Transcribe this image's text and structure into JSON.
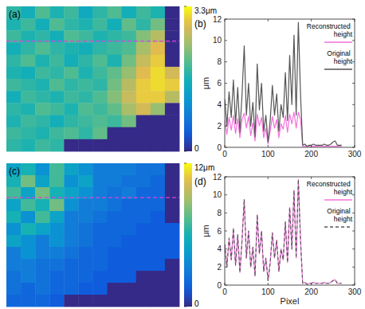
{
  "chart_data": [
    {
      "type": "heatmap",
      "title": "(a)",
      "tick_labels": false,
      "cells": [
        [
          1.8,
          1.6,
          2.0,
          1.7,
          1.9,
          1.5,
          1.8,
          2.0,
          1.6,
          1.9,
          1.7,
          0
        ],
        [
          1.7,
          1.9,
          1.6,
          2.0,
          1.8,
          1.7,
          1.9,
          1.6,
          2.1,
          1.8,
          2.2,
          0
        ],
        [
          1.9,
          1.7,
          1.8,
          1.6,
          2.0,
          1.9,
          1.7,
          1.8,
          1.9,
          2.3,
          2.6,
          0
        ],
        [
          1.6,
          1.8,
          2.0,
          1.8,
          1.7,
          1.6,
          1.8,
          1.9,
          2.0,
          2.5,
          2.9,
          0
        ],
        [
          1.8,
          2.0,
          1.7,
          1.9,
          1.6,
          1.8,
          2.0,
          1.7,
          2.2,
          2.7,
          3.0,
          0
        ],
        [
          1.7,
          1.6,
          1.9,
          1.8,
          2.0,
          1.7,
          1.9,
          2.1,
          2.4,
          2.9,
          3.1,
          2.8
        ],
        [
          1.9,
          1.8,
          1.7,
          2.0,
          1.8,
          1.9,
          1.8,
          2.2,
          2.6,
          3.0,
          3.1,
          3.0
        ],
        [
          1.6,
          1.9,
          1.8,
          1.7,
          1.9,
          1.8,
          2.0,
          2.3,
          2.7,
          3.0,
          3.0,
          2.6
        ],
        [
          1.8,
          1.7,
          2.0,
          1.9,
          1.7,
          2.0,
          1.9,
          2.1,
          2.5,
          2.8,
          2.4,
          0
        ],
        [
          1.7,
          1.9,
          1.8,
          1.6,
          1.8,
          1.9,
          2.0,
          1.9,
          2.2,
          0,
          0,
          0
        ],
        [
          1.9,
          1.8,
          1.7,
          1.9,
          2.0,
          1.8,
          2.1,
          0,
          0,
          0,
          0,
          0
        ],
        [
          1.8,
          1.7,
          1.9,
          1.8,
          0,
          0,
          0,
          0,
          0,
          0,
          0,
          0
        ]
      ],
      "colorbar_range": [
        0,
        3.3
      ],
      "colorbar_ticks": [
        {
          "value": 3.3,
          "label": "3.3μm"
        },
        0
      ]
    },
    {
      "type": "line",
      "title": "(b)",
      "y_label": "μm",
      "x": [
        0,
        5,
        10,
        15,
        20,
        25,
        30,
        35,
        40,
        45,
        50,
        55,
        60,
        65,
        70,
        75,
        80,
        85,
        90,
        95,
        100,
        105,
        110,
        115,
        120,
        125,
        130,
        135,
        140,
        145,
        150,
        155,
        160,
        165,
        170,
        175,
        180,
        185,
        190,
        195,
        200,
        205,
        210,
        215,
        220,
        225,
        230,
        235,
        240,
        245,
        250,
        255,
        260,
        265,
        270
      ],
      "series": [
        {
          "name": "Reconstructed height",
          "color": "#f472dc",
          "line_style": "solid",
          "values": [
            2.5,
            1.2,
            2.8,
            1.6,
            3.0,
            1.3,
            2.7,
            0.9,
            2.6,
            3.2,
            1.8,
            2.9,
            1.1,
            2.3,
            0.6,
            3.1,
            2.0,
            2.8,
            0.9,
            1.8,
            0.3,
            1.5,
            2.9,
            1.8,
            2.6,
            0.9,
            2.2,
            1.7,
            3.0,
            1.4,
            3.1,
            2.2,
            3.3,
            1.8,
            3.3,
            2.6,
            0.1,
            0.1,
            0.1,
            0.1,
            0.1,
            0.1,
            0.1,
            0.1,
            0.1,
            0.1,
            0.1,
            0.1,
            0.1,
            0.1,
            0.1,
            0.1,
            0.1,
            0.1,
            0.1
          ]
        },
        {
          "name": "Original height",
          "color": "#555555",
          "line_style": "solid",
          "values": [
            4.5,
            2.0,
            5.2,
            2.8,
            6.3,
            2.2,
            5.6,
            1.4,
            5.0,
            9.5,
            3.0,
            6.0,
            2.0,
            4.2,
            1.0,
            7.8,
            3.5,
            6.0,
            1.5,
            3.0,
            0.5,
            2.5,
            5.8,
            3.0,
            5.0,
            1.5,
            4.0,
            2.8,
            7.0,
            2.5,
            8.6,
            4.0,
            10.5,
            3.0,
            11.7,
            5.0,
            0.2,
            0.3,
            0.1,
            0.2,
            0.2,
            0.3,
            0.2,
            0.2,
            0.2,
            0.2,
            0.3,
            0.2,
            0.2,
            0.3,
            0.5,
            0.6,
            0.2,
            0.2,
            0.2
          ]
        }
      ],
      "xlim": [
        0,
        300
      ],
      "ylim": [
        0,
        12
      ],
      "xticks": [
        0,
        100,
        200,
        300
      ],
      "yticks": [
        0,
        2,
        4,
        6,
        8,
        10,
        12
      ],
      "legend": "upper right"
    },
    {
      "type": "heatmap",
      "title": "(c)",
      "tick_labels": false,
      "cells": [
        [
          5,
          6,
          4,
          7,
          5,
          4,
          3,
          3,
          3,
          2.5,
          2.5,
          0
        ],
        [
          6,
          8,
          5,
          7,
          4,
          5,
          3,
          3,
          2.5,
          2.5,
          2,
          0
        ],
        [
          7,
          5,
          8,
          6,
          5,
          4,
          3,
          2.5,
          3,
          2,
          2,
          0
        ],
        [
          5,
          7,
          6,
          8,
          4,
          3,
          3,
          2.5,
          2,
          2,
          2,
          0
        ],
        [
          6,
          4,
          7,
          5,
          3,
          3,
          2.5,
          2,
          2,
          2,
          1.5,
          0
        ],
        [
          4,
          6,
          5,
          4,
          3,
          2.5,
          2,
          2,
          2,
          1.5,
          1.5,
          1.5
        ],
        [
          5,
          4,
          3,
          4,
          3,
          2.5,
          2,
          2,
          1.5,
          1.5,
          1.5,
          1.5
        ],
        [
          3,
          4,
          3,
          3,
          2.5,
          2,
          2,
          1.5,
          1.5,
          1.5,
          1.5,
          1.5
        ],
        [
          3,
          3,
          2.5,
          2.5,
          2,
          2,
          2,
          1.5,
          1.5,
          1.5,
          1.5,
          0
        ],
        [
          2.5,
          3,
          2.5,
          2,
          2,
          2,
          1.5,
          1.5,
          1.5,
          0,
          0,
          0
        ],
        [
          2.5,
          2,
          2.5,
          2,
          2,
          1.5,
          1.5,
          0,
          0,
          0,
          0,
          0
        ],
        [
          2,
          2,
          2,
          1.5,
          0,
          0,
          0,
          0,
          0,
          0,
          0,
          0
        ]
      ],
      "colorbar_range": [
        0,
        12
      ],
      "colorbar_ticks": [
        {
          "value": 12,
          "label": "12μm"
        },
        0
      ]
    },
    {
      "type": "line",
      "title": "(d)",
      "x_label": "Pixel",
      "y_label": "μm",
      "x": [
        0,
        5,
        10,
        15,
        20,
        25,
        30,
        35,
        40,
        45,
        50,
        55,
        60,
        65,
        70,
        75,
        80,
        85,
        90,
        95,
        100,
        105,
        110,
        115,
        120,
        125,
        130,
        135,
        140,
        145,
        150,
        155,
        160,
        165,
        170,
        175,
        180,
        185,
        190,
        195,
        200,
        205,
        210,
        215,
        220,
        225,
        230,
        235,
        240,
        245,
        250,
        255,
        260,
        265,
        270
      ],
      "series": [
        {
          "name": "Reconstructed height",
          "color": "#f472dc",
          "line_style": "solid",
          "values": [
            4.5,
            2.0,
            5.2,
            2.8,
            6.3,
            2.2,
            5.6,
            1.4,
            5.0,
            9.5,
            3.0,
            6.0,
            2.0,
            4.2,
            1.0,
            7.8,
            3.5,
            6.0,
            1.5,
            3.0,
            0.5,
            2.5,
            5.8,
            3.0,
            5.0,
            1.5,
            4.0,
            2.8,
            7.0,
            2.5,
            8.6,
            4.0,
            10.5,
            3.0,
            11.7,
            5.0,
            0.2,
            0.3,
            0.1,
            0.2,
            0.2,
            0.3,
            0.2,
            0.2,
            0.2,
            0.2,
            0.3,
            0.2,
            0.2,
            0.3,
            0.5,
            0.6,
            0.2,
            0.2,
            0.2
          ]
        },
        {
          "name": "Original height",
          "color": "#555555",
          "line_style": "dashed",
          "values": [
            4.5,
            2.0,
            5.2,
            2.8,
            6.3,
            2.2,
            5.6,
            1.4,
            5.0,
            9.5,
            3.0,
            6.0,
            2.0,
            4.2,
            1.0,
            7.8,
            3.5,
            6.0,
            1.5,
            3.0,
            0.5,
            2.5,
            5.8,
            3.0,
            5.0,
            1.5,
            4.0,
            2.8,
            7.0,
            2.5,
            8.6,
            4.0,
            10.5,
            3.0,
            11.7,
            5.0,
            0.2,
            0.3,
            0.1,
            0.2,
            0.2,
            0.3,
            0.2,
            0.2,
            0.2,
            0.2,
            0.3,
            0.2,
            0.2,
            0.3,
            0.5,
            0.6,
            0.2,
            0.2,
            0.2
          ]
        }
      ],
      "xlim": [
        0,
        300
      ],
      "ylim": [
        0,
        12
      ],
      "xticks": [
        0,
        100,
        200,
        300
      ],
      "yticks": [
        0,
        2,
        4,
        6,
        8,
        10,
        12
      ],
      "legend": "upper right"
    }
  ]
}
